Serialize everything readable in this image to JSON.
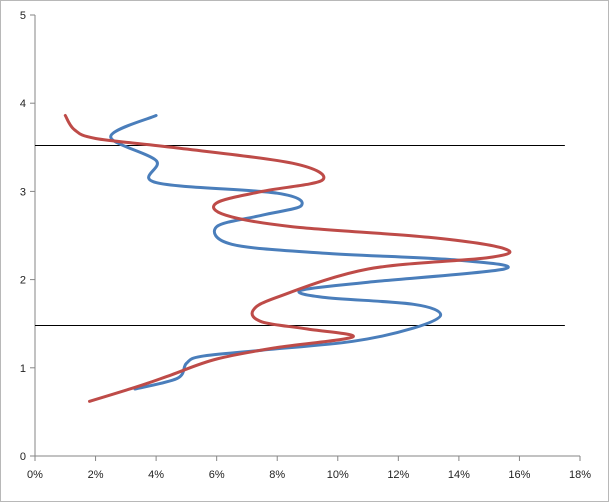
{
  "chart_data": {
    "type": "line",
    "title": "",
    "xlabel": "",
    "ylabel": "",
    "xlim": [
      0,
      0.18
    ],
    "ylim": [
      0,
      5
    ],
    "x_ticks": [
      {
        "value": 0.0,
        "label": "0%"
      },
      {
        "value": 0.02,
        "label": "2%"
      },
      {
        "value": 0.04,
        "label": "4%"
      },
      {
        "value": 0.06,
        "label": "6%"
      },
      {
        "value": 0.08,
        "label": "8%"
      },
      {
        "value": 0.1,
        "label": "10%"
      },
      {
        "value": 0.12,
        "label": "12%"
      },
      {
        "value": 0.14,
        "label": "14%"
      },
      {
        "value": 0.16,
        "label": "16%"
      },
      {
        "value": 0.18,
        "label": "18%"
      }
    ],
    "y_ticks": [
      {
        "value": 0,
        "label": "0"
      },
      {
        "value": 1,
        "label": "1"
      },
      {
        "value": 2,
        "label": "2"
      },
      {
        "value": 3,
        "label": "3"
      },
      {
        "value": 4,
        "label": "4"
      },
      {
        "value": 5,
        "label": "5"
      }
    ],
    "grid": false,
    "legend": "none",
    "reference_lines": [
      {
        "y": 3.52,
        "x_range": [
          0,
          0.175
        ]
      },
      {
        "y": 1.48,
        "x_range": [
          0,
          0.175
        ]
      }
    ],
    "series": [
      {
        "color": "#4a7ebb",
        "points": [
          [
            0.033,
            0.76
          ],
          [
            0.047,
            0.88
          ],
          [
            0.05,
            1.05
          ],
          [
            0.055,
            1.13
          ],
          [
            0.075,
            1.2
          ],
          [
            0.105,
            1.3
          ],
          [
            0.125,
            1.45
          ],
          [
            0.134,
            1.6
          ],
          [
            0.125,
            1.72
          ],
          [
            0.095,
            1.8
          ],
          [
            0.088,
            1.88
          ],
          [
            0.11,
            1.97
          ],
          [
            0.155,
            2.12
          ],
          [
            0.14,
            2.22
          ],
          [
            0.095,
            2.3
          ],
          [
            0.065,
            2.4
          ],
          [
            0.06,
            2.6
          ],
          [
            0.075,
            2.73
          ],
          [
            0.088,
            2.84
          ],
          [
            0.08,
            2.98
          ],
          [
            0.04,
            3.1
          ],
          [
            0.04,
            3.35
          ],
          [
            0.025,
            3.62
          ],
          [
            0.04,
            3.86
          ]
        ]
      },
      {
        "color": "#be4b48",
        "points": [
          [
            0.018,
            0.62
          ],
          [
            0.035,
            0.8
          ],
          [
            0.045,
            0.92
          ],
          [
            0.06,
            1.1
          ],
          [
            0.08,
            1.23
          ],
          [
            0.105,
            1.35
          ],
          [
            0.09,
            1.44
          ],
          [
            0.075,
            1.52
          ],
          [
            0.072,
            1.65
          ],
          [
            0.08,
            1.8
          ],
          [
            0.11,
            2.12
          ],
          [
            0.15,
            2.25
          ],
          [
            0.155,
            2.35
          ],
          [
            0.13,
            2.48
          ],
          [
            0.085,
            2.6
          ],
          [
            0.063,
            2.73
          ],
          [
            0.06,
            2.87
          ],
          [
            0.075,
            3.0
          ],
          [
            0.095,
            3.13
          ],
          [
            0.085,
            3.32
          ],
          [
            0.045,
            3.5
          ],
          [
            0.02,
            3.6
          ],
          [
            0.013,
            3.7
          ],
          [
            0.01,
            3.86
          ]
        ]
      }
    ]
  }
}
